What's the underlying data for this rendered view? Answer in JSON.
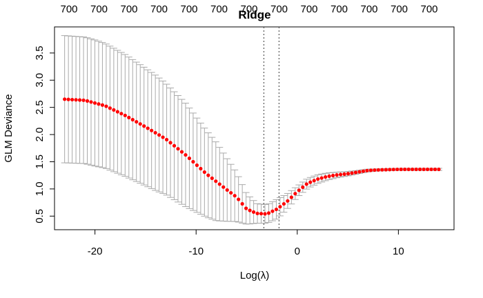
{
  "chart_data": {
    "type": "scatter",
    "title": "Ridge",
    "xlabel": "Log(λ)",
    "ylabel": "GLM Deviance",
    "xlim": [
      -24,
      15.5
    ],
    "ylim": [
      0.25,
      3.98
    ],
    "x_ticks": [
      -20,
      -10,
      0,
      10
    ],
    "x_tick_labels": [
      "-20",
      "-10",
      "0",
      "10"
    ],
    "y_ticks": [
      0.5,
      1.0,
      1.5,
      2.0,
      2.5,
      3.0,
      3.5
    ],
    "y_tick_labels": [
      "0.5",
      "1.0",
      "1.5",
      "2.0",
      "2.5",
      "3.0",
      "3.5"
    ],
    "top_axis_labels": [
      "700",
      "700",
      "700",
      "700",
      "700",
      "700",
      "700",
      "700",
      "700",
      "700",
      "700",
      "700",
      "700"
    ],
    "point_color": "#ff0000",
    "errorbar_color": "#a9a9a9",
    "vline_color": "#555555",
    "log_lambda_min": -3.3,
    "log_lambda_1se": -1.8,
    "x_range": [
      -23.0,
      14.0
    ],
    "n_points": 100,
    "curve": {
      "x": [
        -23,
        -21,
        -19,
        -17,
        -15,
        -13,
        -11,
        -9,
        -7,
        -6,
        -5,
        -4,
        -3,
        -2,
        -1,
        0,
        1,
        2,
        3,
        4,
        5,
        6,
        7,
        8,
        10,
        12,
        14
      ],
      "y": [
        2.65,
        2.63,
        2.53,
        2.35,
        2.14,
        1.92,
        1.62,
        1.28,
        0.99,
        0.85,
        0.63,
        0.55,
        0.54,
        0.63,
        0.77,
        0.95,
        1.1,
        1.18,
        1.23,
        1.26,
        1.28,
        1.31,
        1.34,
        1.35,
        1.36,
        1.36,
        1.36
      ]
    },
    "half_width": {
      "x": [
        -23,
        -20,
        -17,
        -14,
        -11,
        -8,
        -6,
        -5,
        -4,
        -3,
        -2,
        -1,
        0,
        2,
        4,
        6,
        8,
        10,
        14
      ],
      "y": [
        1.17,
        1.16,
        1.12,
        1.06,
        0.95,
        0.72,
        0.45,
        0.28,
        0.18,
        0.17,
        0.18,
        0.14,
        0.1,
        0.08,
        0.05,
        0.03,
        0.02,
        0.02,
        0.02
      ]
    }
  }
}
